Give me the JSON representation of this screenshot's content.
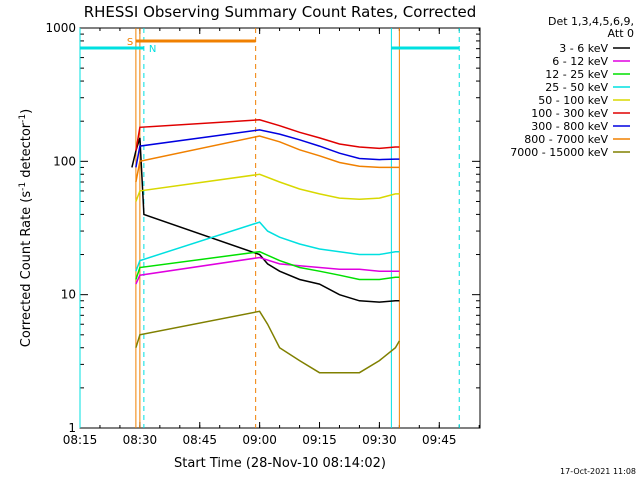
{
  "chart_data": {
    "type": "line",
    "title": "RHESSI Observing Summary Count Rates, Corrected",
    "xlabel": "Start Time (28-Nov-10 08:14:02)",
    "ylabel_pre": "Corrected Count Rate (s",
    "ylabel_sup1": "-1",
    "ylabel_mid": " detector",
    "ylabel_sup2": "-1",
    "ylabel_post": ")",
    "yscale": "log",
    "ylim": [
      1,
      1000
    ],
    "xlim_min": [
      8.25,
      9.92
    ],
    "x_ticks": [
      "08:15",
      "08:30",
      "08:45",
      "09:00",
      "09:15",
      "09:30",
      "09:45"
    ],
    "y_ticks": [
      "1",
      "10",
      "100",
      "1000"
    ],
    "legend_header": [
      "Det 1,3,4,5,6,9,",
      "Att 0"
    ],
    "legend_position": "right",
    "footer": "17-Oct-2021 11:08",
    "grid": false,
    "series": [
      {
        "name": "3 - 6 keV",
        "color": "#000000",
        "x": [
          "08:28",
          "08:29",
          "08:30",
          "08:31",
          "09:00",
          "09:02",
          "09:05",
          "09:10",
          "09:15",
          "09:20",
          "09:25",
          "09:30",
          "09:34",
          "09:35"
        ],
        "values": [
          90,
          120,
          150,
          40,
          20,
          17,
          15,
          13,
          12,
          10,
          9,
          8.8,
          9,
          9
        ]
      },
      {
        "name": "6 - 12 keV",
        "color": "#e000e0",
        "x": [
          "08:29",
          "08:30",
          "09:00",
          "09:05",
          "09:10",
          "09:15",
          "09:20",
          "09:25",
          "09:30",
          "09:34",
          "09:35"
        ],
        "values": [
          12,
          14,
          19,
          17,
          16.5,
          16,
          15.5,
          15.5,
          15,
          15,
          15
        ]
      },
      {
        "name": "12 - 25 keV",
        "color": "#00e000",
        "x": [
          "08:29",
          "08:30",
          "09:00",
          "09:05",
          "09:10",
          "09:15",
          "09:20",
          "09:25",
          "09:30",
          "09:34",
          "09:35"
        ],
        "values": [
          13,
          16,
          21,
          18,
          16,
          15,
          14,
          13,
          13,
          13.5,
          13.5
        ]
      },
      {
        "name": "25 - 50 keV",
        "color": "#00e0e0",
        "x": [
          "08:29",
          "08:30",
          "09:00",
          "09:02",
          "09:05",
          "09:10",
          "09:15",
          "09:20",
          "09:25",
          "09:30",
          "09:34",
          "09:35"
        ],
        "values": [
          15,
          18,
          35,
          30,
          27,
          24,
          22,
          21,
          20,
          20,
          21,
          21
        ]
      },
      {
        "name": "50 - 100 keV",
        "color": "#d8d800",
        "x": [
          "08:29",
          "08:30",
          "09:00",
          "09:05",
          "09:10",
          "09:15",
          "09:20",
          "09:25",
          "09:30",
          "09:34",
          "09:35"
        ],
        "values": [
          50,
          60,
          80,
          70,
          62,
          57,
          53,
          52,
          53,
          57,
          57
        ]
      },
      {
        "name": "100 - 300 keV",
        "color": "#e00000",
        "x": [
          "08:29",
          "08:30",
          "09:00",
          "09:05",
          "09:10",
          "09:15",
          "09:20",
          "09:25",
          "09:30",
          "09:34",
          "09:35"
        ],
        "values": [
          120,
          180,
          205,
          185,
          165,
          150,
          135,
          128,
          125,
          128,
          128
        ]
      },
      {
        "name": "300 - 800 keV",
        "color": "#0000e0",
        "x": [
          "08:29",
          "08:30",
          "09:00",
          "09:05",
          "09:10",
          "09:15",
          "09:20",
          "09:25",
          "09:30",
          "09:34",
          "09:35"
        ],
        "values": [
          90,
          130,
          172,
          160,
          145,
          130,
          115,
          105,
          103,
          104,
          104
        ]
      },
      {
        "name": "800 - 7000 keV",
        "color": "#f08000",
        "x": [
          "08:29",
          "08:30",
          "09:00",
          "09:05",
          "09:10",
          "09:15",
          "09:20",
          "09:25",
          "09:30",
          "09:34",
          "09:35"
        ],
        "values": [
          70,
          100,
          155,
          140,
          122,
          110,
          98,
          92,
          90,
          90,
          90
        ]
      },
      {
        "name": "7000 - 15000 keV",
        "color": "#808000",
        "x": [
          "08:29",
          "08:30",
          "09:00",
          "09:02",
          "09:05",
          "09:10",
          "09:15",
          "09:20",
          "09:25",
          "09:30",
          "09:34",
          "09:35"
        ],
        "values": [
          4,
          5,
          7.5,
          6,
          4,
          3.2,
          2.6,
          2.6,
          2.6,
          3.2,
          4,
          4.5
        ]
      }
    ],
    "flags": [
      {
        "label": "S",
        "color": "#f08000",
        "start": "08:29",
        "end": "08:59"
      },
      {
        "label": "N",
        "color": "#00e0e0",
        "start": "08:14",
        "end": "08:31"
      },
      {
        "label": "",
        "color": "#00e0e0",
        "start": "09:33",
        "end": "09:50"
      }
    ],
    "markers": [
      {
        "color": "#f08000",
        "style": "solid",
        "x": "08:29"
      },
      {
        "color": "#f08000",
        "style": "solid",
        "x": "08:30"
      },
      {
        "color": "#f08000",
        "style": "dashed",
        "x": "08:59"
      },
      {
        "color": "#f08000",
        "style": "solid",
        "x": "09:35"
      },
      {
        "color": "#00e0e0",
        "style": "solid",
        "x": "08:14"
      },
      {
        "color": "#00e0e0",
        "style": "dashed",
        "x": "08:31"
      },
      {
        "color": "#00e0e0",
        "style": "solid",
        "x": "09:33"
      },
      {
        "color": "#00e0e0",
        "style": "dashed",
        "x": "09:50"
      }
    ]
  }
}
